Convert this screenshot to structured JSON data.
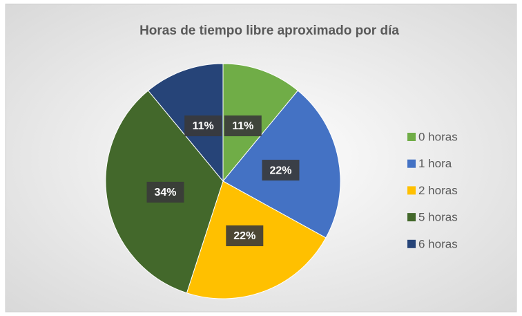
{
  "chart_data": {
    "type": "pie",
    "title": "Horas de tiempo libre aproximado por día",
    "categories": [
      "0 horas",
      "1 hora",
      "2 horas",
      "5 horas",
      "6 horas"
    ],
    "values": [
      11,
      22,
      22,
      34,
      11
    ],
    "value_labels": [
      "11%",
      "22%",
      "22%",
      "34%",
      "11%"
    ],
    "colors": [
      "#70ad47",
      "#4472c4",
      "#ffc000",
      "#43682b",
      "#264478"
    ],
    "legend": "right"
  }
}
